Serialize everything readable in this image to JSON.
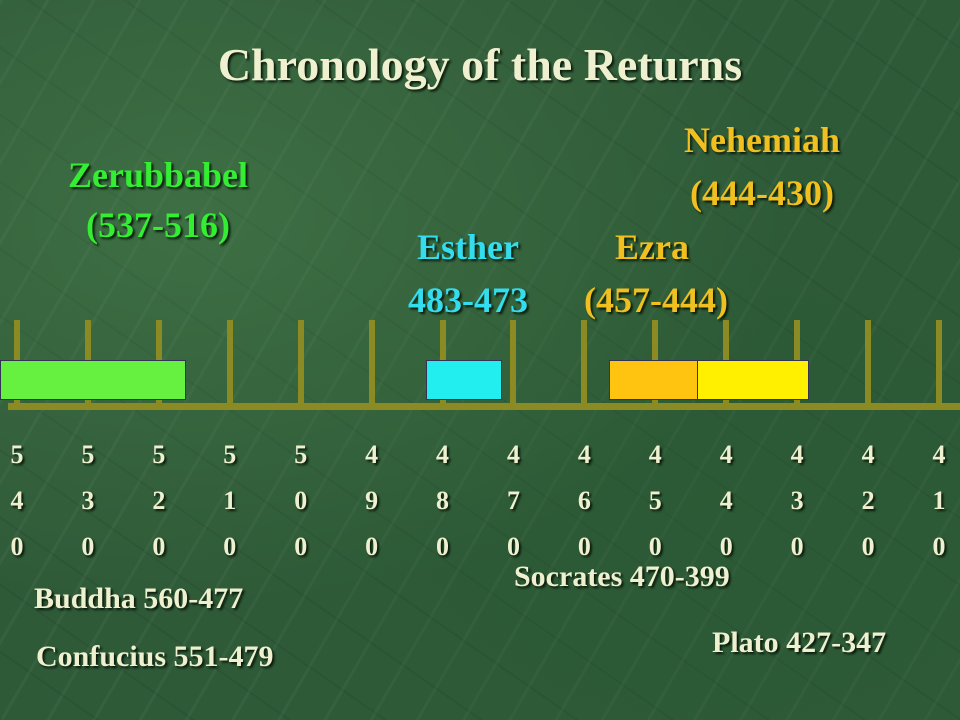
{
  "title": "Chronology of the Returns",
  "groups": [
    {
      "name": "Zerubbabel",
      "range": "(537-516)"
    },
    {
      "name": "Esther",
      "range": "483-473"
    },
    {
      "name": "Ezra",
      "range": "(457-444)"
    },
    {
      "name": "Nehemiah",
      "range": "(444-430)"
    }
  ],
  "timeline_ticks": [
    "540",
    "530",
    "520",
    "510",
    "500",
    "490",
    "480",
    "470",
    "460",
    "450",
    "440",
    "430",
    "420",
    "410"
  ],
  "contemporaries": [
    "Buddha 560-477",
    "Confucius 551-479",
    "Socrates 470-399",
    "Plato 427-347"
  ]
}
